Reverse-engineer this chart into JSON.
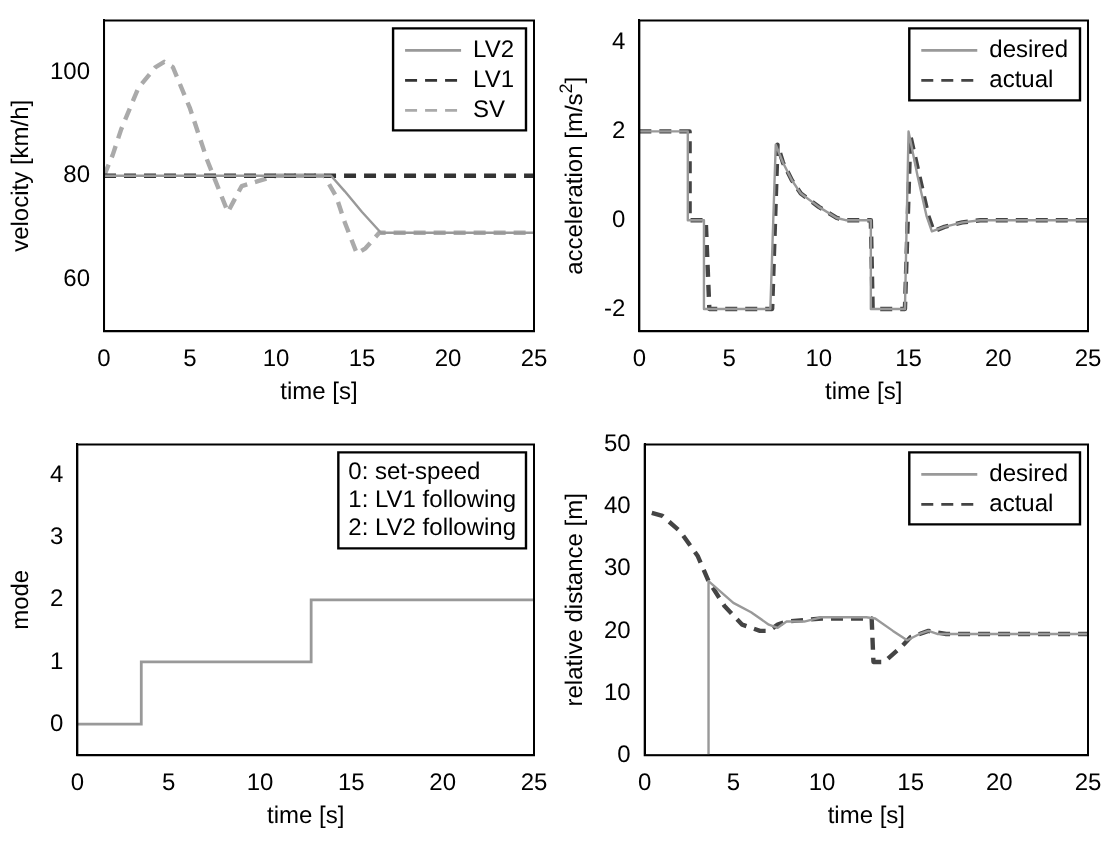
{
  "chart_data": [
    {
      "type": "line",
      "xlabel": "time [s]",
      "ylabel": "velocity [km/h]",
      "xlim": [
        0,
        25
      ],
      "xticks": [
        0,
        5,
        10,
        15,
        20,
        25
      ],
      "ylim": [
        50,
        110
      ],
      "yticks": [
        60,
        80,
        100
      ],
      "grid": false,
      "legend": "top right",
      "series": [
        {
          "name": "LV2",
          "color": "#999999",
          "line_style": "solid",
          "x": [
            0,
            13.2,
            14,
            15,
            16.1,
            25
          ],
          "values": [
            80,
            80,
            77,
            73,
            69,
            69
          ]
        },
        {
          "name": "LV1",
          "color": "#333333",
          "line_style": "dashed",
          "x": [
            0,
            25
          ],
          "values": [
            80,
            80
          ]
        },
        {
          "name": "SV",
          "color": "#aaaaaa",
          "line_style": "dashed",
          "x": [
            0,
            0.5,
            1,
            2,
            3,
            3.5,
            4,
            5,
            6,
            7.2,
            8,
            9,
            10,
            12.8,
            13.5,
            14,
            14.7,
            15.2,
            16,
            18,
            25
          ],
          "values": [
            80,
            84,
            89,
            97,
            101,
            102,
            101,
            93,
            83,
            73,
            78,
            79,
            80,
            80,
            76,
            71,
            65,
            66,
            69,
            69,
            69
          ]
        }
      ]
    },
    {
      "type": "line",
      "xlabel": "time [s]",
      "ylabel": "acceleration [m/s$^{2}$]",
      "xlim": [
        0,
        25
      ],
      "xticks": [
        0,
        5,
        10,
        15,
        20,
        25
      ],
      "ylim": [
        -2.5,
        4.5
      ],
      "yticks": [
        -2,
        0,
        2,
        4
      ],
      "grid": false,
      "legend": "top right",
      "series": [
        {
          "name": "desired",
          "color": "#999999",
          "line_style": "solid",
          "x": [
            0,
            2.7,
            2.7,
            3.6,
            3.6,
            7.3,
            7.6,
            8,
            8.5,
            9,
            10,
            11,
            11.5,
            12.9,
            12.9,
            14.8,
            15,
            15.5,
            16,
            16.3,
            17,
            18,
            19,
            25
          ],
          "values": [
            2,
            2,
            0,
            0,
            -2,
            -2,
            1.7,
            1.3,
            0.9,
            0.6,
            0.3,
            0.05,
            0,
            0,
            -2,
            -2,
            2,
            1,
            0.1,
            -0.25,
            -0.15,
            -0.05,
            0,
            0
          ]
        },
        {
          "name": "actual",
          "color": "#444444",
          "line_style": "dashed",
          "x": [
            0,
            2.8,
            2.8,
            3.7,
            3.9,
            7.4,
            7.7,
            8,
            8.5,
            9,
            10,
            11,
            11.5,
            12.9,
            13,
            14.8,
            15.1,
            15.6,
            16.1,
            16.4,
            17,
            18,
            19,
            25
          ],
          "values": [
            2,
            2,
            0,
            0,
            -2,
            -2,
            1.7,
            1.3,
            0.9,
            0.6,
            0.3,
            0.05,
            0,
            0,
            -2,
            -2,
            1.9,
            1,
            0.1,
            -0.25,
            -0.15,
            -0.05,
            0,
            0
          ]
        }
      ]
    },
    {
      "type": "step",
      "xlabel": "time [s]",
      "ylabel": "mode",
      "xlim": [
        0,
        25
      ],
      "xticks": [
        0,
        5,
        10,
        15,
        20,
        25
      ],
      "ylim": [
        -0.5,
        4.5
      ],
      "yticks": [
        0,
        1,
        2,
        3,
        4
      ],
      "grid": false,
      "color": "#999999",
      "x": [
        0,
        3.5,
        12.8,
        25
      ],
      "values": [
        0,
        1,
        2,
        2
      ],
      "annotations": [
        "0: set-speed",
        "1: LV1 following",
        "2: LV2 following"
      ]
    },
    {
      "type": "line",
      "xlabel": "time [s]",
      "ylabel": "relative distance [m]",
      "xlim": [
        0,
        25
      ],
      "xticks": [
        0,
        5,
        10,
        15,
        20,
        25
      ],
      "ylim": [
        0,
        50
      ],
      "yticks": [
        0,
        10,
        20,
        30,
        40,
        50
      ],
      "grid": false,
      "legend": "top right",
      "series": [
        {
          "name": "desired",
          "color": "#999999",
          "line_style": "solid",
          "x": [
            0,
            3.6,
            3.6,
            5,
            6,
            7,
            7.5,
            8,
            9,
            10,
            12.5,
            13,
            14,
            14.8,
            15.5,
            16,
            16.5,
            25
          ],
          "values": [
            0,
            0,
            28,
            24.5,
            23,
            21,
            20.5,
            21.5,
            21.5,
            22.2,
            22.2,
            22,
            20,
            18.5,
            19.5,
            20,
            19.5,
            19.5
          ]
        },
        {
          "name": "actual",
          "color": "#444444",
          "line_style": "dashed",
          "x": [
            0.4,
            1,
            2,
            3,
            3.6,
            4.5,
            5.5,
            6.5,
            7,
            7.5,
            8,
            10,
            12.8,
            12.9,
            13.5,
            14.5,
            15,
            16,
            17,
            25
          ],
          "values": [
            39,
            38.5,
            36,
            32,
            28,
            24,
            21,
            20,
            20,
            21,
            21.5,
            22,
            22,
            15,
            15,
            17.5,
            19,
            20,
            19.5,
            19.5
          ]
        }
      ]
    }
  ]
}
